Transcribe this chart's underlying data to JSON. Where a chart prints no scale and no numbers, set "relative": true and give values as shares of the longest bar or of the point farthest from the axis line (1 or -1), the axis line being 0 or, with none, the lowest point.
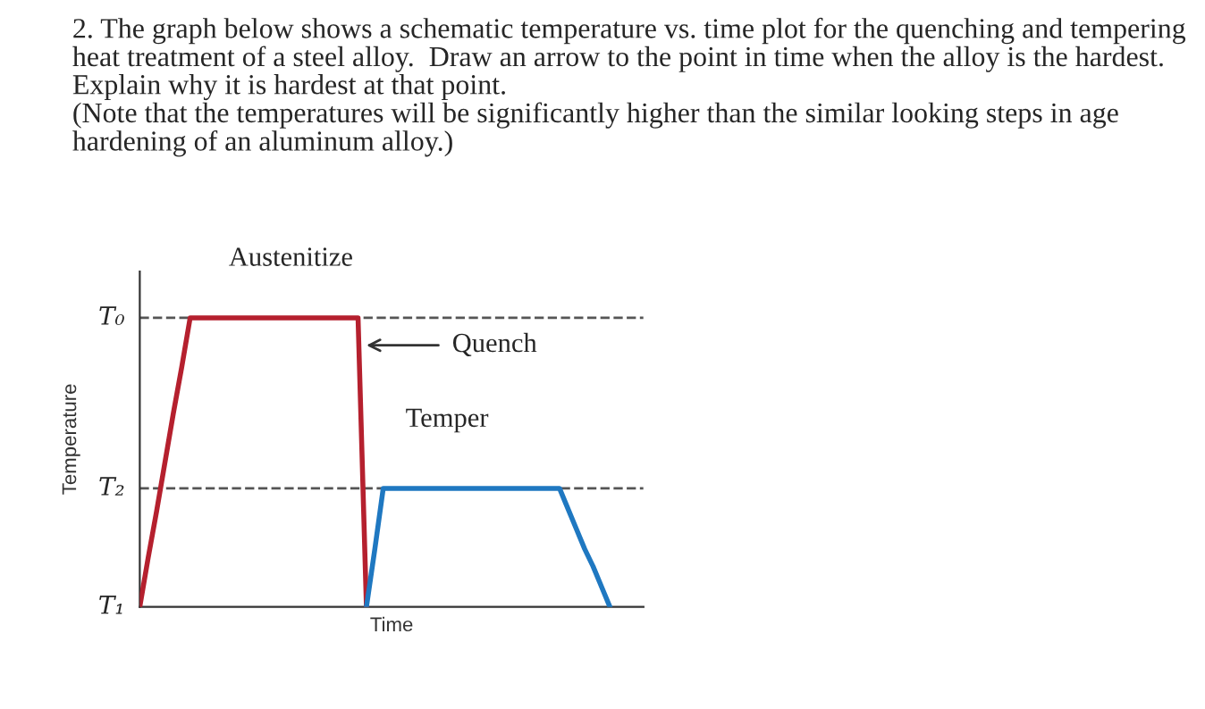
{
  "chart_data": {
    "type": "line",
    "title": "2. The graph below shows a schematic temperature vs. time plot for the quenching and tempering heat treatment of a steel alloy.  Draw an arrow to the point in time when the alloy is the hardest.  Explain why it is hardest at that point.\n(Note that the temperatures will be significantly higher than the similar looking steps in age hardening of an aluminum alloy.)",
    "xlabel": "Time",
    "ylabel": "Temperature",
    "categories": [
      null,
      null,
      null,
      null,
      null,
      null,
      null,
      null,
      null,
      null,
      null,
      null,
      null,
      null,
      null,
      null,
      null,
      null,
      null,
      null,
      null,
      null,
      null,
      null,
      null,
      null,
      null,
      null,
      null,
      null,
      null,
      null,
      null,
      null,
      null,
      null,
      null,
      null,
      null,
      null,
      null,
      null,
      null,
      null,
      null,
      null,
      null,
      null,
      null,
      null,
      null,
      null,
      null,
      null,
      null,
      null,
      null,
      null,
      null,
      null,
      null
    ],
    "relative": true,
    "series": [
      {
        "color": "#b5202e",
        "values": [
          0,
          0.17,
          0.33,
          0.5,
          0.67,
          0.83,
          1,
          1,
          1,
          1,
          1,
          1,
          1,
          1,
          1,
          1,
          1,
          1,
          1,
          1,
          1,
          1,
          1,
          1,
          1,
          1,
          1,
          0,
          null,
          null,
          null,
          null,
          null,
          null,
          null,
          null,
          null,
          null,
          null,
          null,
          null,
          null,
          null,
          null,
          null,
          null,
          null,
          null,
          null,
          null,
          null,
          null,
          null,
          null,
          null,
          null,
          null,
          null,
          null,
          null,
          null
        ]
      },
      {
        "color": "#1f78c1",
        "values": [
          null,
          null,
          null,
          null,
          null,
          null,
          null,
          null,
          null,
          null,
          null,
          null,
          null,
          null,
          null,
          null,
          null,
          null,
          null,
          null,
          null,
          null,
          null,
          null,
          null,
          null,
          null,
          0,
          0.2,
          0.41,
          0.41,
          0.41,
          0.41,
          0.41,
          0.41,
          0.41,
          0.41,
          0.41,
          0.41,
          0.41,
          0.41,
          0.41,
          0.41,
          0.41,
          0.41,
          0.41,
          0.41,
          0.41,
          0.41,
          0.41,
          0.41,
          0.34,
          0.27,
          0.2,
          0.14,
          0.07,
          0,
          null,
          null,
          null,
          null
        ]
      }
    ],
    "ref_lines": [
      {
        "axis": "y",
        "value": 1,
        "label": "T₀",
        "line_style": "dashed",
        "color": "#555555"
      },
      {
        "axis": "y",
        "value": 0.41,
        "label": "T₂",
        "line_style": "dashed",
        "color": "#555555"
      }
    ],
    "annotations": [
      "Austenitize",
      "Quench",
      "Temper",
      "T₁"
    ],
    "tick_labels": false,
    "marker": "none",
    "line_style": "solid"
  }
}
